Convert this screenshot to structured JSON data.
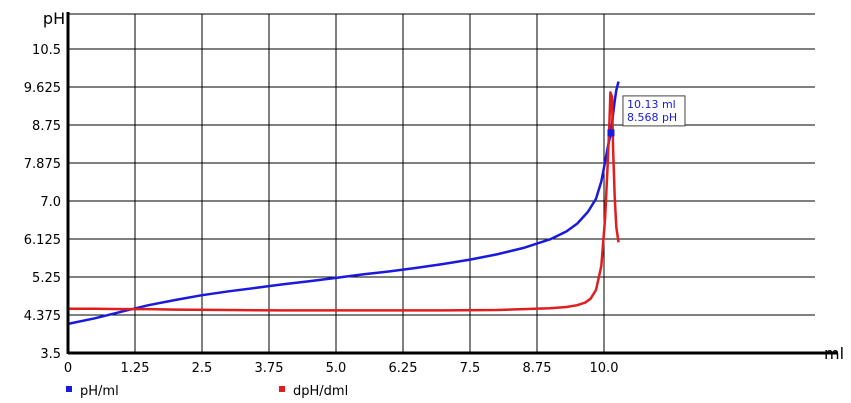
{
  "chart_data": {
    "type": "line",
    "ylabel": "pH",
    "xlabel": "ml",
    "xlim": [
      0,
      12.0
    ],
    "ylim": [
      3.5,
      11.2
    ],
    "x_ticks": [
      "0",
      "1.25",
      "2.5",
      "3.75",
      "5.0",
      "6.25",
      "7.5",
      "8.75",
      "10.0"
    ],
    "x_tick_values": [
      0,
      1.25,
      2.5,
      3.75,
      5.0,
      6.25,
      7.5,
      8.75,
      10.0
    ],
    "y_ticks": [
      "3.5",
      "4.375",
      "5.25",
      "6.125",
      "7.0",
      "7.875",
      "8.75",
      "9.625",
      "10.5"
    ],
    "y_tick_values": [
      3.5,
      4.375,
      5.25,
      6.125,
      7.0,
      7.875,
      8.75,
      9.625,
      10.5
    ],
    "grid": true,
    "legend_position": "bottom-left",
    "series": [
      {
        "name": "pH/ml",
        "color": "#1a1adc",
        "points": [
          [
            0,
            4.17
          ],
          [
            0.5,
            4.3
          ],
          [
            1.0,
            4.45
          ],
          [
            1.5,
            4.6
          ],
          [
            2.0,
            4.72
          ],
          [
            2.5,
            4.83
          ],
          [
            3.0,
            4.92
          ],
          [
            3.5,
            5.0
          ],
          [
            4.0,
            5.08
          ],
          [
            4.5,
            5.15
          ],
          [
            5.0,
            5.23
          ],
          [
            5.5,
            5.31
          ],
          [
            6.0,
            5.38
          ],
          [
            6.5,
            5.46
          ],
          [
            7.0,
            5.55
          ],
          [
            7.5,
            5.65
          ],
          [
            8.0,
            5.77
          ],
          [
            8.5,
            5.92
          ],
          [
            9.0,
            6.12
          ],
          [
            9.3,
            6.3
          ],
          [
            9.5,
            6.48
          ],
          [
            9.7,
            6.75
          ],
          [
            9.85,
            7.05
          ],
          [
            9.95,
            7.45
          ],
          [
            10.02,
            7.9
          ],
          [
            10.08,
            8.3
          ],
          [
            10.13,
            8.568
          ],
          [
            10.17,
            9.0
          ],
          [
            10.2,
            9.3
          ],
          [
            10.23,
            9.55
          ],
          [
            10.27,
            9.75
          ]
        ]
      },
      {
        "name": "dpH/dml",
        "color": "#e01e1e",
        "points": [
          [
            0,
            4.52
          ],
          [
            0.5,
            4.52
          ],
          [
            1.0,
            4.51
          ],
          [
            1.5,
            4.51
          ],
          [
            2.0,
            4.5
          ],
          [
            3.0,
            4.49
          ],
          [
            4.0,
            4.48
          ],
          [
            5.0,
            4.48
          ],
          [
            6.0,
            4.48
          ],
          [
            7.0,
            4.48
          ],
          [
            8.0,
            4.49
          ],
          [
            8.5,
            4.51
          ],
          [
            9.0,
            4.53
          ],
          [
            9.3,
            4.56
          ],
          [
            9.5,
            4.6
          ],
          [
            9.65,
            4.66
          ],
          [
            9.75,
            4.75
          ],
          [
            9.85,
            4.95
          ],
          [
            9.95,
            5.5
          ],
          [
            10.02,
            6.6
          ],
          [
            10.07,
            7.9
          ],
          [
            10.1,
            8.8
          ],
          [
            10.12,
            9.5
          ],
          [
            10.15,
            9.4
          ],
          [
            10.17,
            8.2
          ],
          [
            10.2,
            7.1
          ],
          [
            10.23,
            6.4
          ],
          [
            10.27,
            6.05
          ]
        ]
      }
    ],
    "annotation": {
      "x": 10.13,
      "y": 8.568,
      "line1": "10.13 ml",
      "line2": "8.568 pH"
    }
  }
}
